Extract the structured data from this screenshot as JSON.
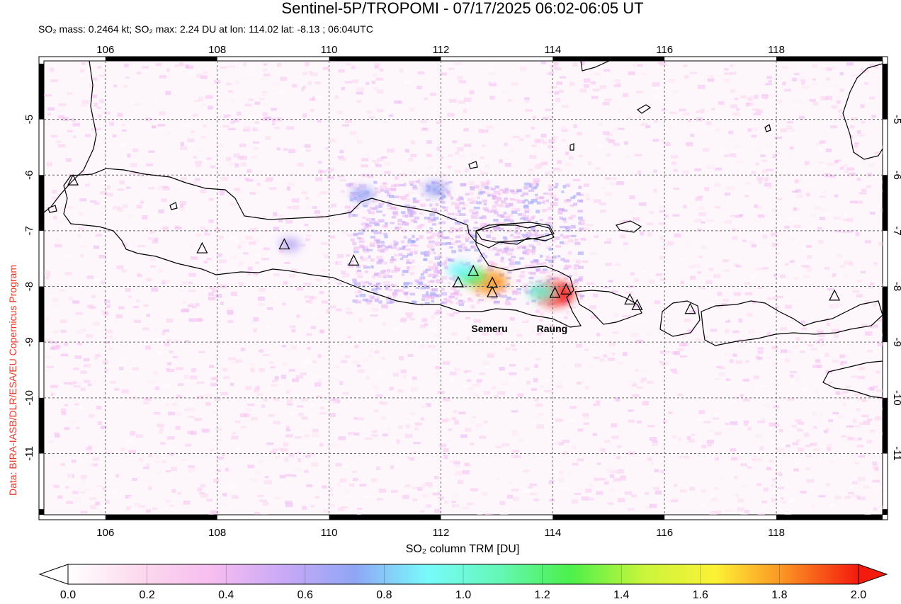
{
  "title": "Sentinel-5P/TROPOMI - 07/17/2025 06:02-06:05 UT",
  "subtitle": "SO₂ mass: 0.2464 kt; SO₂ max: 2.24 DU at lon: 114.02 lat: -8.13 ; 06:04UTC",
  "credit": "Data: BIRA-IASB/DLR/ESA/EU Copernicus Program",
  "map": {
    "lon_range": [
      104.9,
      119.9
    ],
    "lat_range": [
      -12.1,
      -3.95
    ],
    "lon_ticks": [
      "106",
      "108",
      "110",
      "112",
      "114",
      "116",
      "118"
    ],
    "lon_tick_values": [
      106,
      108,
      110,
      112,
      114,
      116,
      118
    ],
    "lat_ticks": [
      "-5",
      "-6",
      "-7",
      "-8",
      "-9",
      "-10",
      "-11"
    ],
    "lat_tick_values": [
      -5,
      -6,
      -7,
      -8,
      -9,
      -10,
      -11
    ],
    "grid": "dashed",
    "volcanoes": [
      {
        "lon": 105.42,
        "lat": -6.1
      },
      {
        "lon": 107.73,
        "lat": -7.32
      },
      {
        "lon": 109.2,
        "lat": -7.25
      },
      {
        "lon": 110.44,
        "lat": -7.54
      },
      {
        "lon": 112.31,
        "lat": -7.93
      },
      {
        "lon": 112.58,
        "lat": -7.73
      },
      {
        "lon": 112.92,
        "lat": -7.94
      },
      {
        "lon": 112.92,
        "lat": -8.11
      },
      {
        "lon": 114.04,
        "lat": -8.12
      },
      {
        "lon": 114.24,
        "lat": -8.06
      },
      {
        "lon": 115.38,
        "lat": -8.24
      },
      {
        "lon": 115.51,
        "lat": -8.34
      },
      {
        "lon": 116.46,
        "lat": -8.41
      },
      {
        "lon": 119.04,
        "lat": -8.17
      }
    ],
    "labels": [
      {
        "text": "Semeru",
        "lon": 112.92,
        "lat": -8.82
      },
      {
        "text": "Raung",
        "lon": 114.04,
        "lat": -8.82
      }
    ],
    "plume_hotspots": [
      {
        "lon": 112.85,
        "lat": -7.92,
        "value": 1.8
      },
      {
        "lon": 112.55,
        "lat": -7.82,
        "value": 1.2
      },
      {
        "lon": 112.35,
        "lat": -7.7,
        "value": 0.9
      },
      {
        "lon": 114.02,
        "lat": -8.13,
        "value": 2.0
      },
      {
        "lon": 113.8,
        "lat": -8.1,
        "value": 1.0
      },
      {
        "lon": 110.6,
        "lat": -6.35,
        "value": 0.7
      },
      {
        "lon": 111.9,
        "lat": -6.25,
        "value": 0.7
      },
      {
        "lon": 109.3,
        "lat": -7.25,
        "value": 0.6
      }
    ]
  },
  "colorbar": {
    "title": "SO₂ column TRM [DU]",
    "ticks": [
      "0.0",
      "0.2",
      "0.4",
      "0.6",
      "0.8",
      "1.0",
      "1.2",
      "1.4",
      "1.6",
      "1.8",
      "2.0"
    ],
    "tick_values": [
      0.0,
      0.2,
      0.4,
      0.6,
      0.8,
      1.0,
      1.2,
      1.4,
      1.6,
      1.8,
      2.0
    ],
    "colors": [
      "#ffffff",
      "#fcd9ee",
      "#f7bdf0",
      "#c9a9f7",
      "#8fa6f5",
      "#78fbfb",
      "#64f7b6",
      "#4cf04a",
      "#c8f53c",
      "#fcf235",
      "#fb8e23",
      "#f41a0d"
    ]
  }
}
